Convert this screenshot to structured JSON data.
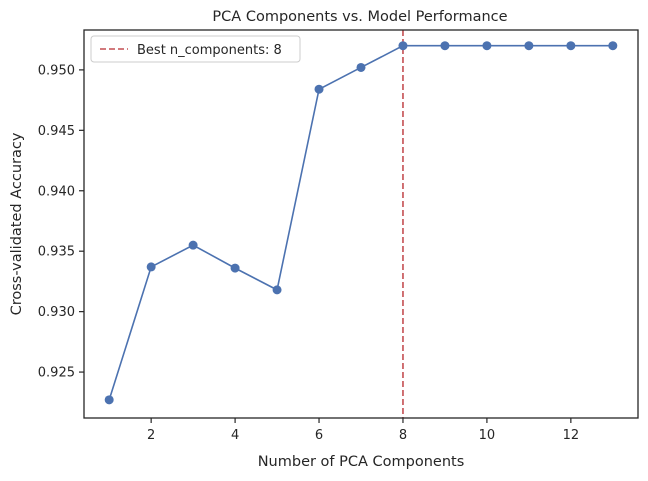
{
  "chart_data": {
    "type": "line",
    "title": "PCA Components vs. Model Performance",
    "xlabel": "Number of PCA Components",
    "ylabel": "Cross-validated Accuracy",
    "xlim": [
      0.4,
      13.6
    ],
    "ylim": [
      0.9212,
      0.9533
    ],
    "xticks": [
      2,
      4,
      6,
      8,
      10,
      12
    ],
    "yticks": [
      0.925,
      0.93,
      0.935,
      0.94,
      0.945,
      0.95
    ],
    "ytick_labels": [
      "0.925",
      "0.930",
      "0.935",
      "0.940",
      "0.945",
      "0.950"
    ],
    "grid": false,
    "legend_position": "top-left",
    "series": [
      {
        "x": [
          1,
          2,
          3,
          4,
          5,
          6,
          7,
          8,
          9,
          10,
          11,
          12,
          13
        ],
        "y": [
          0.9227,
          0.9337,
          0.9355,
          0.9336,
          0.9318,
          0.9484,
          0.9502,
          0.952,
          0.952,
          0.952,
          0.952,
          0.952,
          0.952
        ],
        "color": "#4c72b0",
        "marker": "circle"
      }
    ],
    "annotations": [
      {
        "type": "vline",
        "x": 8,
        "style": "dashed",
        "color": "#c44e52",
        "label": "Best n_components: 8"
      }
    ]
  }
}
